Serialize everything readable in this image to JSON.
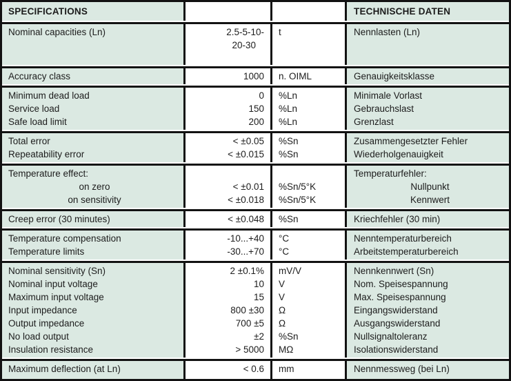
{
  "colors": {
    "cell_bg_green": "#dbe9e2",
    "cell_bg_white": "#ffffff",
    "border": "#121212",
    "text": "#1c1c1c"
  },
  "table": {
    "header": {
      "specifications": "SPECIFICATIONS",
      "technische_daten": "TECHNISCHE DATEN"
    },
    "rows": [
      {
        "en": [
          "Nominal capacities (Ln)"
        ],
        "value": [
          "2.5-5-10-",
          {
            "t": "20-30",
            "cls": "inset"
          }
        ],
        "unit": [
          "t"
        ],
        "de": [
          "Nennlasten (Ln)"
        ]
      },
      {
        "en": [
          "Accuracy class"
        ],
        "value": [
          "1000"
        ],
        "unit": [
          "n. OIML"
        ],
        "de": [
          "Genauigkeitsklasse"
        ]
      },
      {
        "en": [
          "Minimum dead load",
          "Service load",
          "Safe load limit"
        ],
        "value": [
          "0",
          "150",
          "200"
        ],
        "unit": [
          "%Ln",
          "%Ln",
          "%Ln"
        ],
        "de": [
          "Minimale Vorlast",
          "Gebrauchslast",
          "Grenzlast"
        ]
      },
      {
        "en": [
          "Total error",
          "Repeatability error"
        ],
        "value": [
          "< ±0.05",
          "< ±0.015"
        ],
        "unit": [
          "%Sn",
          "%Sn"
        ],
        "de": [
          "Zusammengesetzter Fehler",
          "Wiederholgenauigkeit"
        ]
      },
      {
        "en": [
          "Temperature effect:",
          {
            "t": "on zero",
            "cls": "center"
          },
          {
            "t": "on sensitivity",
            "cls": "center"
          }
        ],
        "value": [
          "",
          "< ±0.01",
          "< ±0.018"
        ],
        "unit": [
          "",
          "%Sn/5°K",
          "%Sn/5°K"
        ],
        "de": [
          "Temperaturfehler:",
          {
            "t": "Nullpunkt",
            "cls": "center"
          },
          {
            "t": "Kennwert",
            "cls": "center"
          }
        ]
      },
      {
        "en": [
          "Creep error (30 minutes)"
        ],
        "value": [
          "< ±0.048"
        ],
        "unit": [
          "%Sn"
        ],
        "de": [
          "Kriechfehler (30 min)"
        ]
      },
      {
        "en": [
          "Temperature compensation",
          "Temperature limits"
        ],
        "value": [
          "-10...+40",
          "-30...+70"
        ],
        "unit": [
          "°C",
          "°C"
        ],
        "de": [
          "Nenntemperaturbereich",
          "Arbeitstemperaturbereich"
        ]
      },
      {
        "en": [
          "Nominal sensitivity (Sn)",
          "Nominal input voltage",
          "Maximum input voltage",
          "Input impedance",
          "Output impedance",
          "No load output",
          "Insulation resistance"
        ],
        "value": [
          "2 ±0.1%",
          "10",
          "15",
          "800 ±30",
          "700 ±5",
          "±2",
          "> 5000"
        ],
        "unit": [
          "mV/V",
          "V",
          "V",
          "Ω",
          "Ω",
          "%Sn",
          "MΩ"
        ],
        "de": [
          "Nennkennwert (Sn)",
          "Nom. Speisespannung",
          "Max. Speisespannung",
          "Eingangswiderstand",
          "Ausgangswiderstand",
          "Nullsignaltoleranz",
          "Isolationswiderstand"
        ]
      },
      {
        "en": [
          "Maximum deflection (at Ln)"
        ],
        "value": [
          "< 0.6"
        ],
        "unit": [
          "mm"
        ],
        "de": [
          "Nennmessweg (bei Ln)"
        ]
      }
    ]
  }
}
